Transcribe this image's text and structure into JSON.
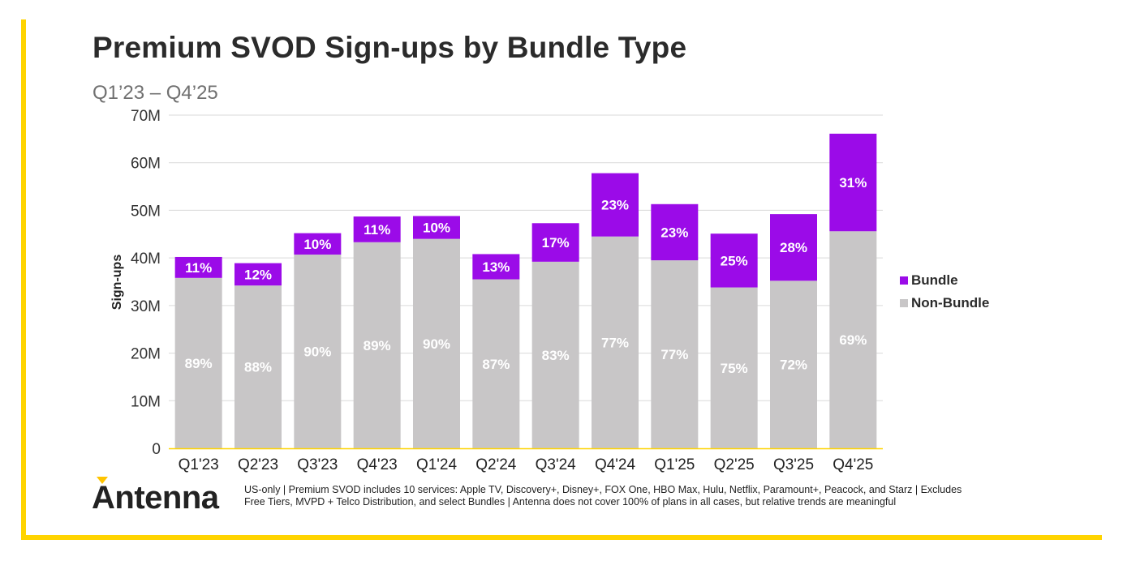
{
  "header": {
    "title": "Premium SVOD Sign-ups by Bundle Type",
    "subtitle": "Q1’23 – Q4’25"
  },
  "colors": {
    "bundle": "#9B0BE8",
    "non_bundle": "#C8C6C7",
    "accent": "#FFD400",
    "gridline": "#D9D9D9"
  },
  "chart_data": {
    "type": "bar",
    "stacked": true,
    "ylabel": "Sign-ups",
    "xlabel": "",
    "ylim": [
      0,
      70
    ],
    "yunit": "M",
    "ytick_labels": [
      "0",
      "10M",
      "20M",
      "30M",
      "40M",
      "50M",
      "60M",
      "70M"
    ],
    "yticks": [
      0,
      10,
      20,
      30,
      40,
      50,
      60,
      70
    ],
    "categories": [
      "Q1'23",
      "Q2'23",
      "Q3'23",
      "Q4'23",
      "Q1'24",
      "Q2'24",
      "Q3'24",
      "Q4'24",
      "Q1'25",
      "Q2'25",
      "Q3'25",
      "Q4'25"
    ],
    "series": [
      {
        "name": "Non-Bundle",
        "color": "#C8C6C7",
        "values": [
          35.8,
          34.2,
          40.7,
          43.3,
          44.0,
          35.5,
          39.2,
          44.5,
          39.5,
          33.8,
          35.2,
          45.6
        ],
        "labels": [
          "89%",
          "88%",
          "90%",
          "89%",
          "90%",
          "87%",
          "83%",
          "77%",
          "77%",
          "75%",
          "72%",
          "69%"
        ]
      },
      {
        "name": "Bundle",
        "color": "#9B0BE8",
        "values": [
          4.4,
          4.7,
          4.5,
          5.4,
          4.8,
          5.3,
          8.1,
          13.3,
          11.8,
          11.3,
          14.0,
          20.5
        ],
        "labels": [
          "11%",
          "12%",
          "10%",
          "11%",
          "10%",
          "13%",
          "17%",
          "23%",
          "23%",
          "25%",
          "28%",
          "31%"
        ]
      }
    ],
    "legend": [
      "Bundle",
      "Non-Bundle"
    ],
    "legend_position": "right"
  },
  "footer": {
    "logo_text": "Antenna",
    "footnote": "US-only | Premium SVOD includes 10 services: Apple TV, Discovery+, Disney+, FOX One, HBO Max, Hulu, Netflix, Paramount+, Peacock, and Starz | Excludes Free Tiers, MVPD + Telco Distribution, and select Bundles | Antenna does not cover 100% of plans in all cases, but relative trends are meaningful"
  }
}
